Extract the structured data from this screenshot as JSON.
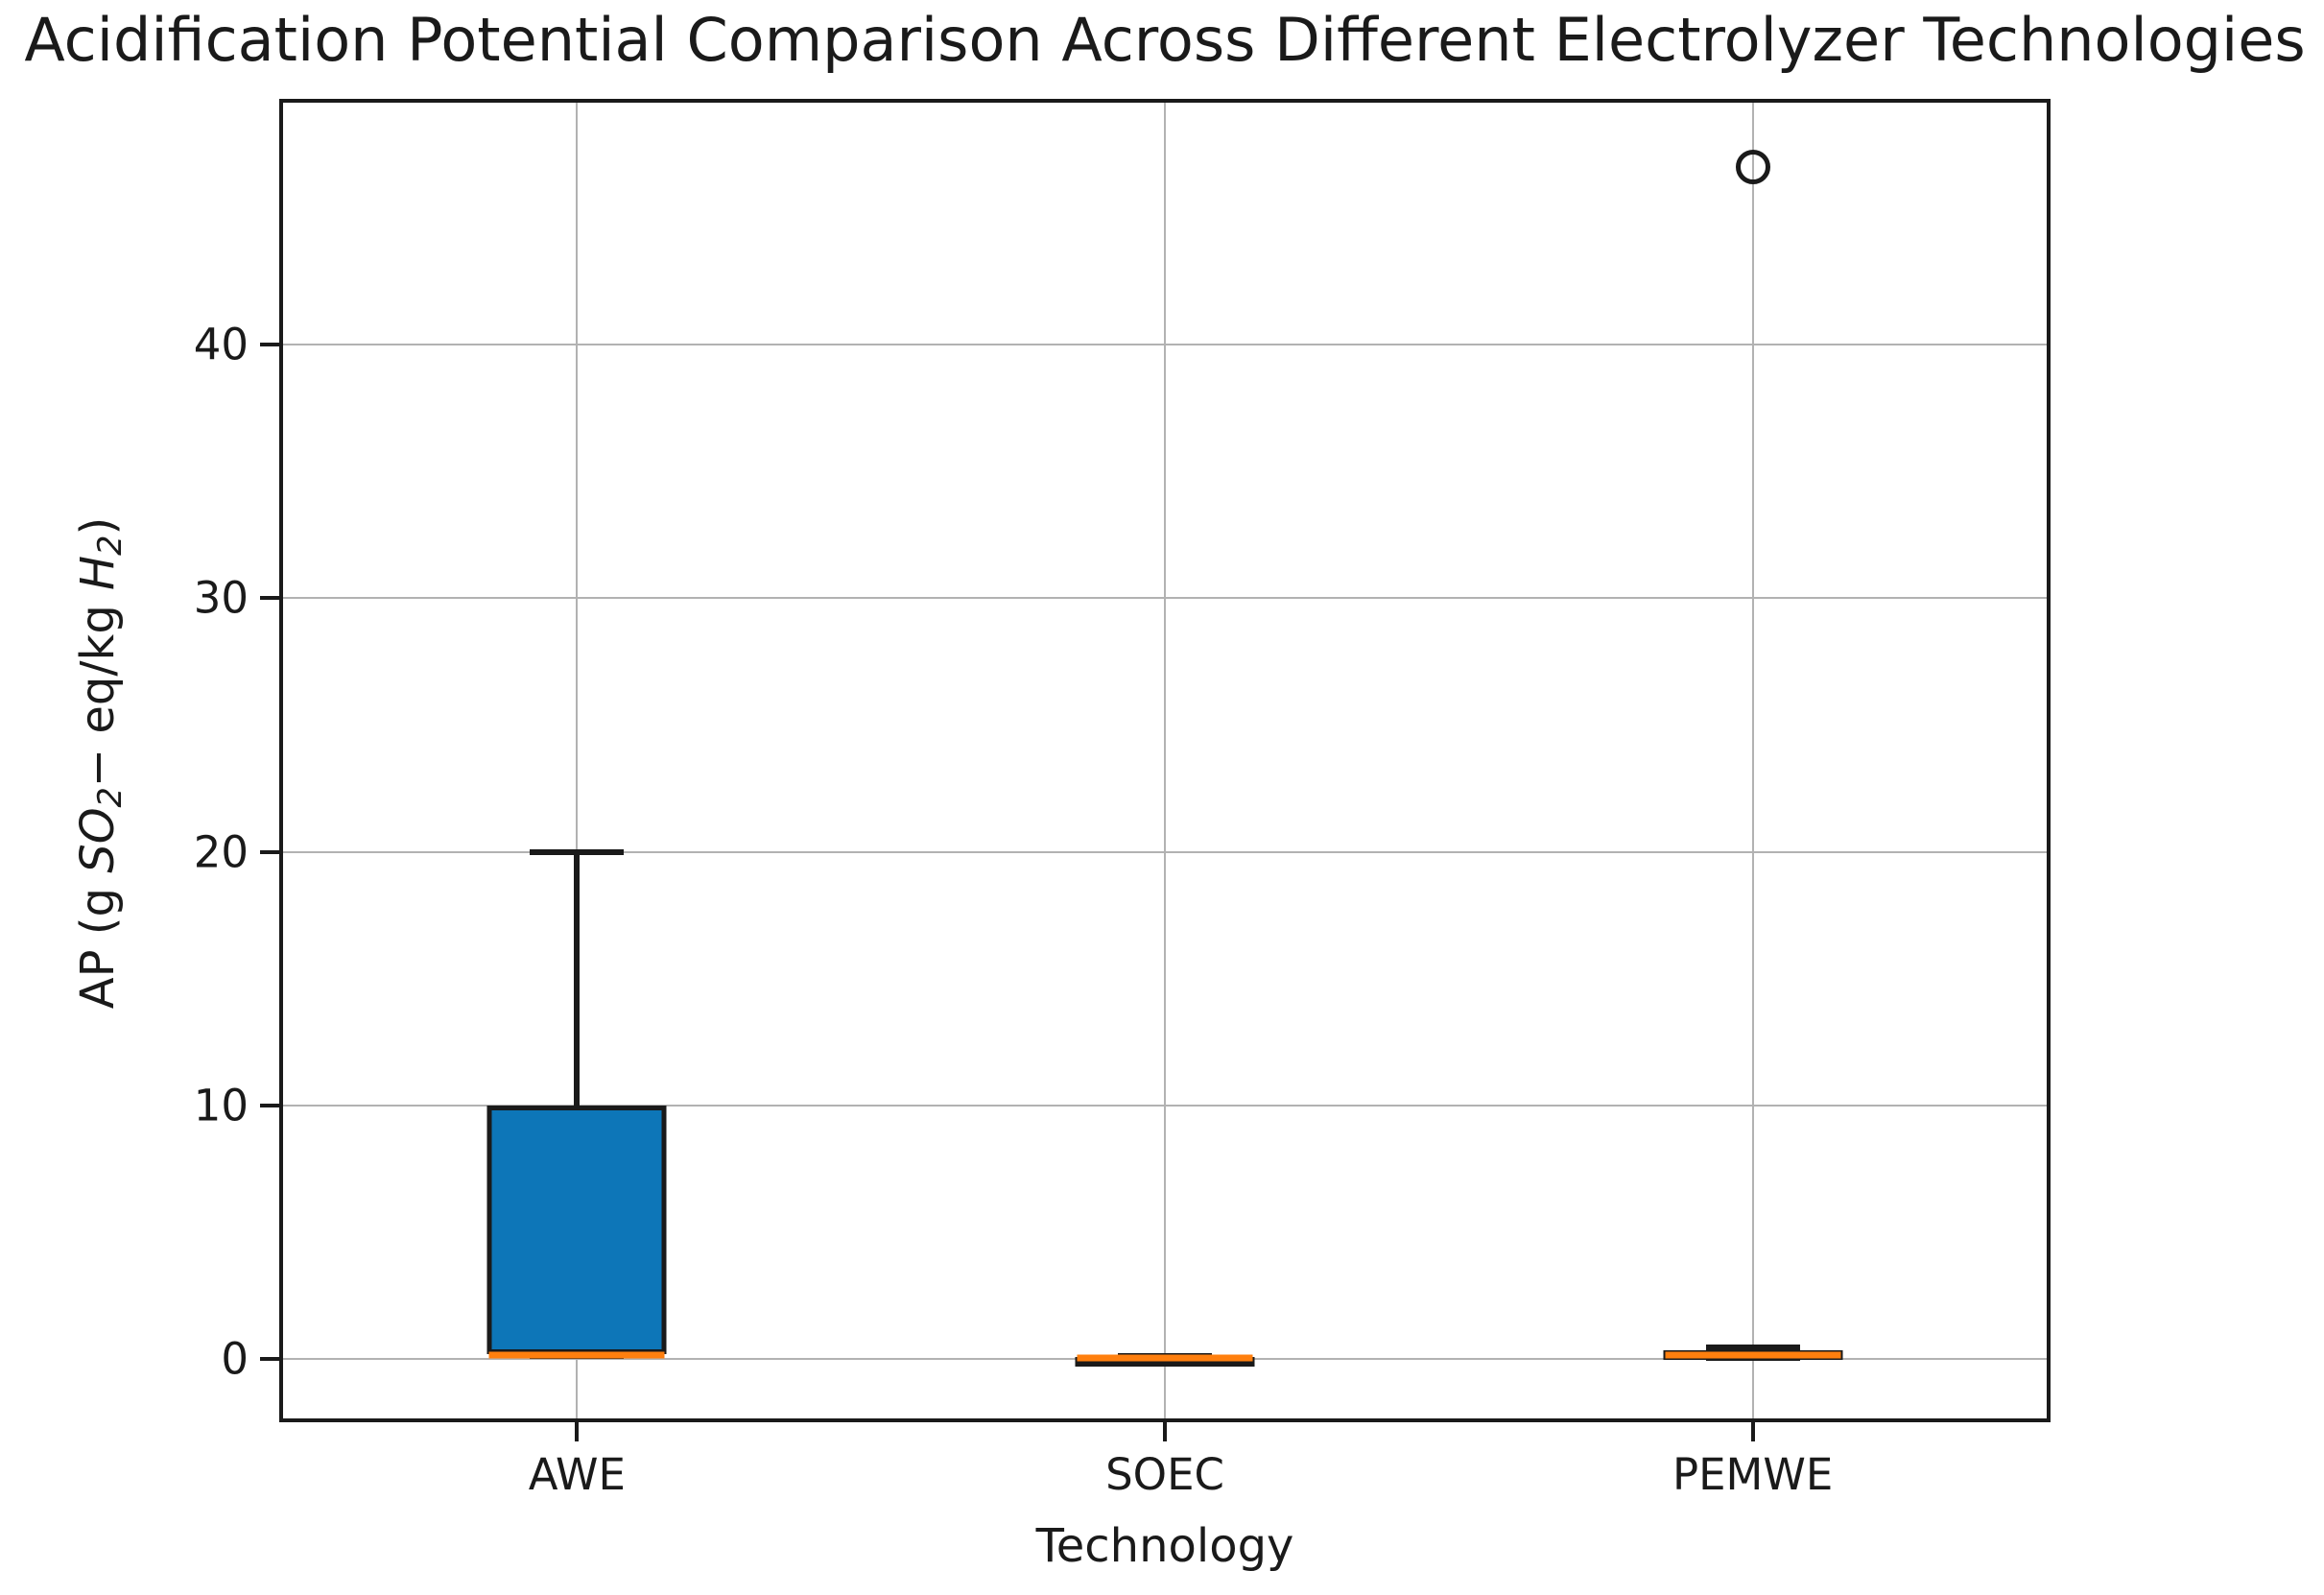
{
  "chart_data": {
    "type": "boxplot",
    "title": "Acidification Potential Comparison Across Different Electrolyzer Technologies",
    "xlabel": "Technology",
    "ylabel_plain": "AP (g SO2− eq/kg H2)",
    "ylabel_parts": {
      "prefix": "AP (g ",
      "so2": "SO",
      "so2_sub": "2",
      "minus": "−",
      "mid": " eq/kg ",
      "h": "H",
      "h_sub": "2",
      "suffix": ")"
    },
    "categories": [
      "AWE",
      "SOEC",
      "PEMWE"
    ],
    "positions": [
      1,
      2,
      3
    ],
    "xlim": [
      0.5,
      3.5
    ],
    "ylim": [
      -2.35,
      49.55
    ],
    "yticks": [
      0,
      10,
      20,
      30,
      40
    ],
    "ytick_labels": [
      "0",
      "10",
      "20",
      "30",
      "40"
    ],
    "grid": true,
    "legend": null,
    "series": [
      {
        "name": "AWE",
        "whislo": 0.1,
        "q1": 0.2,
        "med": 0.2,
        "q3": 10.0,
        "whishi": 20.0,
        "fliers": []
      },
      {
        "name": "SOEC",
        "whislo": 0.02,
        "q1": 0.04,
        "med": 0.06,
        "q3": 0.09,
        "whishi": 0.12,
        "fliers": []
      },
      {
        "name": "PEMWE",
        "whislo": 0.05,
        "q1": 0.1,
        "med": 0.2,
        "q3": 0.35,
        "whishi": 0.45,
        "fliers": [
          47
        ]
      }
    ],
    "colors": {
      "box_fill": "#0d76b8",
      "box_edge": "#1a1a1a",
      "median": "#ff7f0e",
      "whisker": "#1a1a1a",
      "flier_edge": "#1a1a1a",
      "grid": "#b2b2b2",
      "spine": "#1a1a1a",
      "text": "#1a1a1a",
      "background": "#ffffff"
    }
  }
}
